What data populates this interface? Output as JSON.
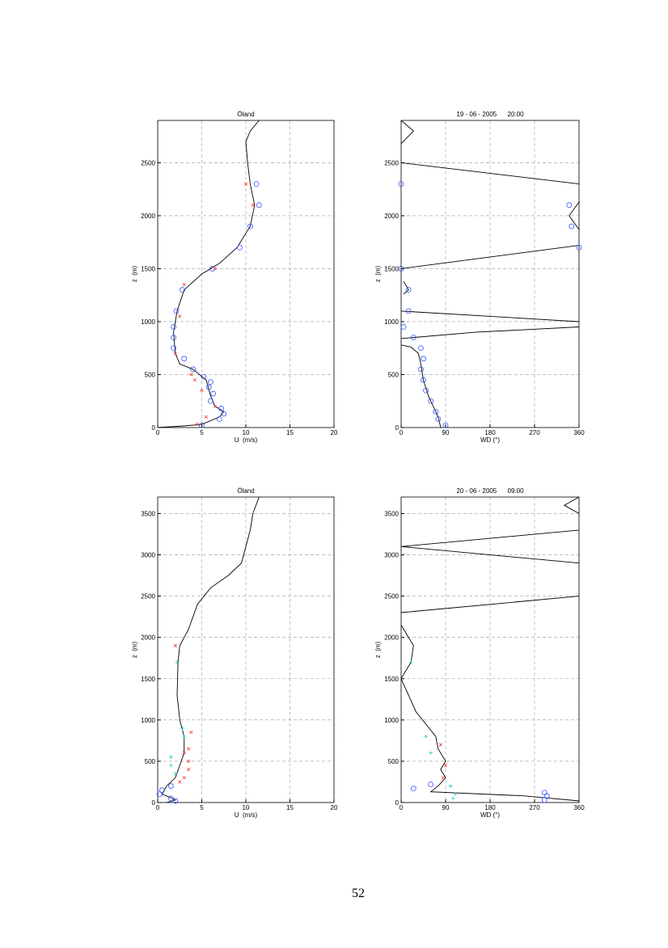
{
  "chart_data": [
    {
      "type": "profile",
      "title": "Öland",
      "xlabel": "U  (m/s)",
      "ylabel": "z  (m)",
      "xlim": [
        0,
        20
      ],
      "xticks": [
        0,
        5,
        10,
        15,
        20
      ],
      "ylim": [
        0,
        2900
      ],
      "yticks": [
        0,
        500,
        1000,
        1500,
        2000,
        2500
      ],
      "grid": true,
      "series": [
        {
          "marker": "line",
          "color": "#000000",
          "x": [
            0,
            3,
            5,
            7,
            7.5,
            6.5,
            6,
            5.5,
            4,
            2.5,
            2,
            1.8,
            2.2,
            3,
            5,
            7,
            9,
            10.5,
            11,
            10.5,
            10.2,
            10,
            10.5,
            11.5
          ],
          "y": [
            0,
            15,
            30,
            100,
            150,
            200,
            300,
            450,
            550,
            600,
            700,
            900,
            1100,
            1300,
            1450,
            1550,
            1700,
            1900,
            2100,
            2300,
            2500,
            2700,
            2800,
            2900
          ]
        },
        {
          "marker": "o",
          "color": "#3355ff",
          "x": [
            5,
            7,
            7.5,
            7.2,
            6,
            6.3,
            5.8,
            6,
            5.2,
            4,
            3,
            1.8,
            1.8,
            1.8,
            2.1,
            2.8,
            6.2,
            9.3,
            10.5,
            11.5,
            11.2
          ],
          "y": [
            20,
            80,
            130,
            180,
            250,
            320,
            380,
            430,
            480,
            550,
            650,
            750,
            850,
            950,
            1100,
            1300,
            1500,
            1700,
            1900,
            2100,
            2300
          ]
        },
        {
          "marker": "x",
          "color": "#ff3333",
          "x": [
            4.5,
            5.5,
            6.5,
            5,
            4.2,
            3.8,
            2,
            2.5,
            3,
            6.5,
            10,
            10.8
          ],
          "y": [
            30,
            100,
            200,
            350,
            450,
            500,
            700,
            1050,
            1350,
            1500,
            2300,
            2100
          ]
        }
      ]
    },
    {
      "type": "profile",
      "title": "19 - 06 - 2005      20:00",
      "xlabel": "WD (°)",
      "ylabel": "z  (m)",
      "xlim": [
        0,
        360
      ],
      "xticks": [
        0,
        90,
        180,
        270,
        360
      ],
      "ylim": [
        0,
        2900
      ],
      "yticks": [
        0,
        500,
        1000,
        1500,
        2000,
        2500
      ],
      "grid": true,
      "series": [
        {
          "marker": "line",
          "color": "#000000",
          "x": [
            80,
            75,
            65,
            55,
            45,
            40,
            35,
            20,
            0,
            null,
            0,
            150,
            360,
            null,
            360,
            0,
            null,
            5,
            15,
            5,
            null,
            0,
            360,
            null,
            360,
            340,
            360,
            null,
            360,
            0,
            null,
            0,
            25,
            0
          ],
          "y": [
            0,
            100,
            200,
            300,
            450,
            600,
            700,
            760,
            780,
            null,
            840,
            900,
            950,
            null,
            1000,
            1100,
            null,
            1260,
            1300,
            1380,
            null,
            1500,
            1720,
            null,
            2130,
            2000,
            1870,
            null,
            2300,
            2500,
            null,
            2680,
            2800,
            2900
          ]
        },
        {
          "marker": "o",
          "color": "#3355ff",
          "x": [
            90,
            75,
            70,
            60,
            50,
            45,
            40,
            45,
            40,
            25,
            5,
            15,
            15,
            0,
            360,
            340,
            345,
            0
          ],
          "y": [
            20,
            80,
            150,
            250,
            350,
            450,
            550,
            650,
            750,
            850,
            950,
            1100,
            1300,
            1500,
            1700,
            2100,
            1900,
            2300
          ]
        }
      ]
    },
    {
      "type": "profile",
      "title": "Öland",
      "xlabel": "U  (m/s)",
      "ylabel": "z  (m)",
      "xlim": [
        0,
        20
      ],
      "xticks": [
        0,
        5,
        10,
        15,
        20
      ],
      "ylim": [
        0,
        3700
      ],
      "yticks": [
        0,
        500,
        1000,
        1500,
        2000,
        2500,
        3000,
        3500
      ],
      "grid": true,
      "series": [
        {
          "marker": "line",
          "color": "#000000",
          "x": [
            1,
            2,
            1.5,
            0.5,
            1,
            2,
            2.5,
            3,
            3,
            2.5,
            2.2,
            2.3,
            2.5,
            3.5,
            4.5,
            6,
            8,
            9.5,
            10,
            10.5,
            10.8,
            11.5
          ],
          "y": [
            0,
            30,
            60,
            100,
            200,
            300,
            450,
            600,
            800,
            1000,
            1300,
            1700,
            1900,
            2100,
            2400,
            2600,
            2750,
            2900,
            3100,
            3300,
            3500,
            3700
          ]
        },
        {
          "marker": "o",
          "color": "#3355ff",
          "x": [
            2,
            1.5,
            0.2,
            0.5,
            1.5
          ],
          "y": [
            20,
            50,
            100,
            150,
            200
          ]
        },
        {
          "marker": "x",
          "color": "#ff3333",
          "x": [
            3,
            3.5,
            3.5,
            3.5,
            3.8,
            3,
            2.5,
            2
          ],
          "y": [
            300,
            400,
            500,
            650,
            850,
            600,
            250,
            1900
          ]
        },
        {
          "marker": "+",
          "color": "#22cccc",
          "x": [
            1.5,
            1.5,
            2,
            3,
            2.8,
            2.2
          ],
          "y": [
            450,
            550,
            350,
            800,
            900,
            1700
          ]
        }
      ]
    },
    {
      "type": "profile",
      "title": "20 - 06 - 2005      09:00",
      "xlabel": "WD (°)",
      "ylabel": "z  (m)",
      "xlim": [
        0,
        360
      ],
      "xticks": [
        0,
        90,
        180,
        270,
        360
      ],
      "ylim": [
        0,
        3700
      ],
      "yticks": [
        0,
        500,
        1000,
        1500,
        2000,
        2500,
        3000,
        3500
      ],
      "grid": true,
      "series": [
        {
          "marker": "line",
          "color": "#000000",
          "x": [
            360,
            250,
            60,
            75,
            90,
            80,
            90,
            75,
            70,
            50,
            30,
            15,
            0,
            20,
            25,
            5,
            0,
            null,
            0,
            360,
            null,
            360,
            0,
            360,
            null,
            360,
            330,
            360
          ],
          "y": [
            20,
            80,
            130,
            200,
            300,
            400,
            500,
            650,
            800,
            950,
            1100,
            1300,
            1500,
            1700,
            1900,
            2100,
            2150,
            null,
            2300,
            2500,
            null,
            2900,
            3100,
            3300,
            null,
            3500,
            3600,
            3700
          ]
        },
        {
          "marker": "o",
          "color": "#3355ff",
          "x": [
            25,
            60,
            290,
            295,
            290
          ],
          "y": [
            170,
            220,
            30,
            80,
            120
          ]
        },
        {
          "marker": "x",
          "color": "#ff3333",
          "x": [
            85,
            90,
            80
          ],
          "y": [
            300,
            450,
            700
          ]
        },
        {
          "marker": "+",
          "color": "#22cccc",
          "x": [
            105,
            110,
            100,
            60,
            50,
            20
          ],
          "y": [
            50,
            100,
            200,
            600,
            800,
            1700
          ]
        }
      ]
    }
  ],
  "page_number": "52"
}
